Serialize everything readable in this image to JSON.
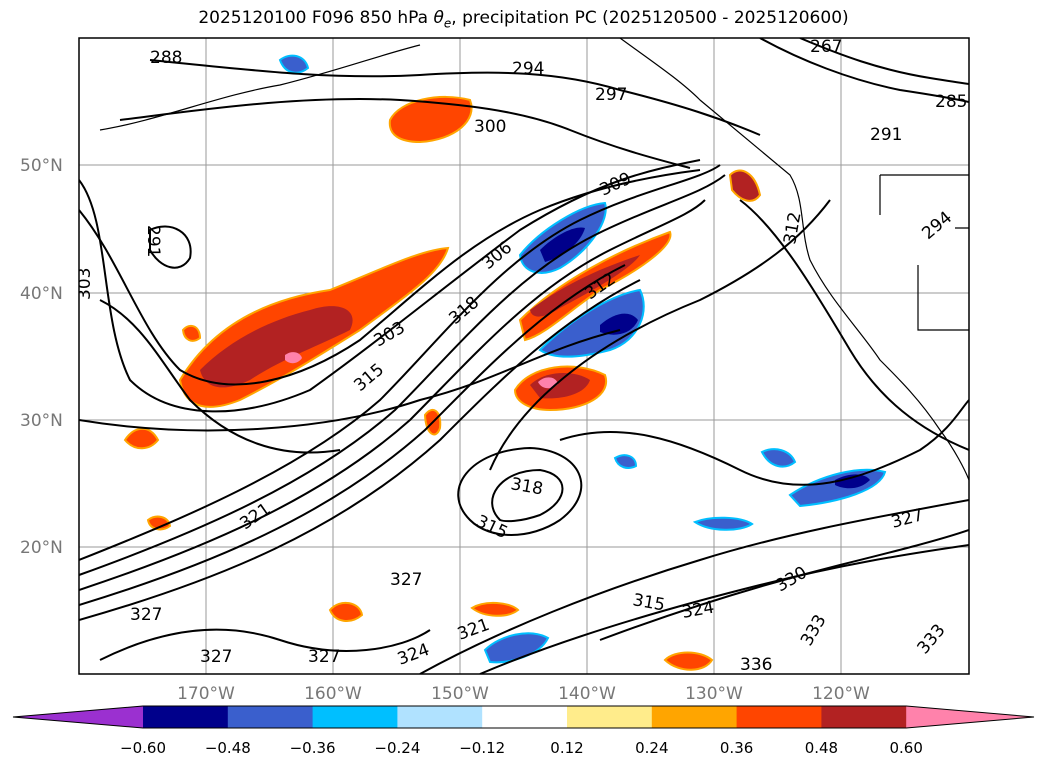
{
  "title": {
    "prefix": "2025120100 F096 850 hPa ",
    "theta": "θ",
    "subscript": "e",
    "suffix": ", precipitation PC (2025120500 - 2025120600)"
  },
  "map": {
    "lat_ticks": [
      "50°N",
      "40°N",
      "30°N",
      "20°N"
    ],
    "lon_ticks": [
      "170°W",
      "160°W",
      "150°W",
      "140°W",
      "130°W",
      "120°W"
    ],
    "grid": true,
    "contour_labels": [
      "288",
      "294",
      "297",
      "300",
      "267",
      "285",
      "291",
      "309",
      "306",
      "312",
      "318",
      "303",
      "291",
      "303",
      "315",
      "318",
      "315",
      "321",
      "327",
      "327",
      "327",
      "324",
      "321",
      "327",
      "315",
      "324",
      "330",
      "336",
      "333",
      "333",
      "327",
      "294",
      "312"
    ]
  },
  "colorbar": {
    "labels": [
      "−0.60",
      "−0.48",
      "−0.36",
      "−0.24",
      "−0.12",
      "0.12",
      "0.24",
      "0.36",
      "0.48",
      "0.60"
    ],
    "colors": [
      "#9b30d0",
      "#00008b",
      "#3a5fcd",
      "#00bfff",
      "#b0e2ff",
      "#ffffff",
      "#ffec8b",
      "#ffa500",
      "#ff4500",
      "#b22222",
      "#ff82ab"
    ]
  }
}
